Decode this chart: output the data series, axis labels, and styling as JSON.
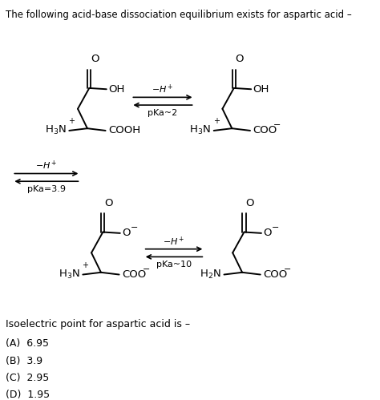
{
  "title": "The following acid-base dissociation equilibrium exists for aspartic acid –",
  "background_color": "#ffffff",
  "text_color": "#000000",
  "question_text": "Isoelectric point for aspartic acid is –",
  "options": [
    "(A)  6.95",
    "(B)  3.9",
    "(C)  2.95",
    "(D)  1.95"
  ],
  "figsize": [
    4.74,
    4.99
  ],
  "dpi": 100
}
